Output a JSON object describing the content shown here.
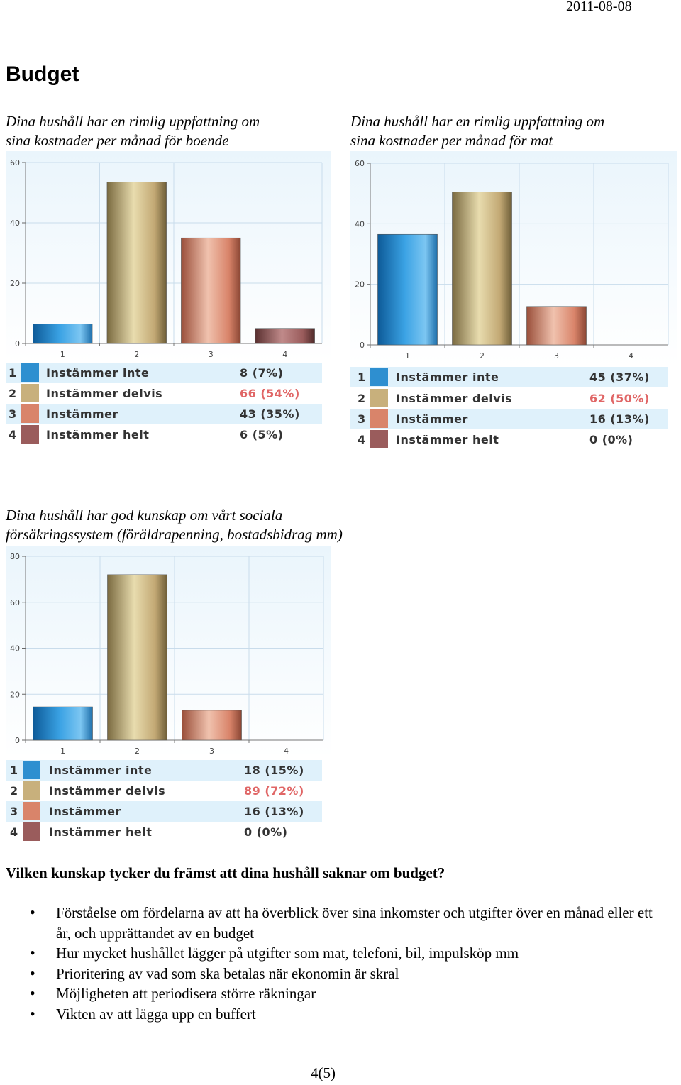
{
  "header": {
    "date": "2011-08-08"
  },
  "page_title": "Budget",
  "charts": [
    {
      "title_line1": "Dina hushåll har en rimlig uppfattning om",
      "title_line2": "sina kostnader per månad för boende",
      "legend": [
        {
          "num": "1",
          "label": "Instämmer inte",
          "value": "8 (7%)"
        },
        {
          "num": "2",
          "label": "Instämmer delvis",
          "value": "66 (54%)"
        },
        {
          "num": "3",
          "label": "Instämmer",
          "value": "43 (35%)"
        },
        {
          "num": "4",
          "label": "Instämmer helt",
          "value": "6 (5%)"
        }
      ]
    },
    {
      "title_line1": "Dina hushåll har en rimlig uppfattning om",
      "title_line2": "sina kostnader per månad för mat",
      "legend": [
        {
          "num": "1",
          "label": "Instämmer inte",
          "value": "45 (37%)"
        },
        {
          "num": "2",
          "label": "Instämmer delvis",
          "value": "62 (50%)"
        },
        {
          "num": "3",
          "label": "Instämmer",
          "value": "16 (13%)"
        },
        {
          "num": "4",
          "label": "Instämmer helt",
          "value": "0 (0%)"
        }
      ]
    },
    {
      "title_line1": "Dina hushåll har god kunskap om vårt sociala",
      "title_line2": "försäkringssystem (föräldrapenning, bostadsbidrag mm)",
      "legend": [
        {
          "num": "1",
          "label": "Instämmer inte",
          "value": "18 (15%)"
        },
        {
          "num": "2",
          "label": "Instämmer delvis",
          "value": "89 (72%)"
        },
        {
          "num": "3",
          "label": "Instämmer",
          "value": "16 (13%)"
        },
        {
          "num": "4",
          "label": "Instämmer helt",
          "value": "0 (0%)"
        }
      ]
    }
  ],
  "chart_data": [
    {
      "type": "bar",
      "categories": [
        "1",
        "2",
        "3",
        "4"
      ],
      "values": [
        6.5,
        53.5,
        35,
        5
      ],
      "ylim": [
        0,
        60
      ],
      "yticks": [
        "0",
        "20",
        "40",
        "60"
      ],
      "grid": true,
      "legend_placement": "bottom",
      "colors": [
        "#2e8fd0",
        "#c8b07c",
        "#d9846a",
        "#9a5c5c"
      ]
    },
    {
      "type": "bar",
      "categories": [
        "1",
        "2",
        "3",
        "4"
      ],
      "values": [
        36.5,
        50.5,
        12.7,
        0
      ],
      "ylim": [
        0,
        60
      ],
      "yticks": [
        "0",
        "20",
        "40",
        "60"
      ],
      "grid": true,
      "legend_placement": "bottom",
      "colors": [
        "#2e8fd0",
        "#c8b07c",
        "#d9846a",
        "#9a5c5c"
      ]
    },
    {
      "type": "bar",
      "categories": [
        "1",
        "2",
        "3",
        "4"
      ],
      "values": [
        14.5,
        72,
        13,
        0
      ],
      "ylim": [
        0,
        80
      ],
      "yticks": [
        "0",
        "20",
        "40",
        "60",
        "80"
      ],
      "grid": true,
      "legend_placement": "bottom",
      "colors": [
        "#2e8fd0",
        "#c8b07c",
        "#d9846a",
        "#9a5c5c"
      ]
    }
  ],
  "section_question": "Vilken kunskap tycker du främst att dina hushåll saknar om budget?",
  "bullets": [
    "Förståelse om fördelarna av att ha överblick över sina inkomster och utgifter över en månad eller ett år, och upprättandet av en budget",
    "Hur mycket hushållet lägger på utgifter som mat, telefoni, bil, impulsköp mm",
    "Prioritering av vad som ska betalas när ekonomin är skral",
    "Möjligheten att periodisera större räkningar",
    "Vikten av att lägga upp en buffert"
  ],
  "footer": {
    "page": "4(5)"
  }
}
